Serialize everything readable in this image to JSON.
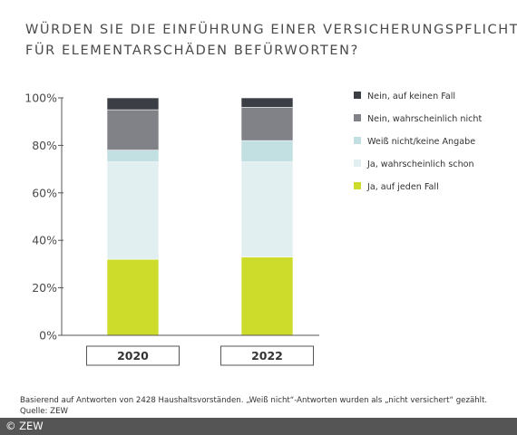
{
  "header": {
    "title_line1": "WÜRDEN SIE DIE EINFÜHRUNG EINER VERSICHERUNGSPFLICHT",
    "title_line2": "FÜR ELEMENTARSCHÄDEN BEFÜRWORTEN?"
  },
  "chart_data": {
    "type": "bar",
    "stacked": true,
    "categories": [
      "2020",
      "2022"
    ],
    "series": [
      {
        "name": "Ja, auf jeden Fall",
        "color": "#cddc2a",
        "values": [
          32,
          33
        ]
      },
      {
        "name": "Ja, wahrscheinlich schon",
        "color": "#e2eff1",
        "values": [
          41,
          40
        ]
      },
      {
        "name": "Weiß nicht/keine Angabe",
        "color": "#c2dfe2",
        "values": [
          5,
          9
        ]
      },
      {
        "name": "Nein, wahrscheinlich nicht",
        "color": "#808288",
        "values": [
          17,
          14
        ]
      },
      {
        "name": "Nein, auf keinen Fall",
        "color": "#3b3e44",
        "values": [
          5,
          4
        ]
      }
    ],
    "y_ticks": [
      "0%",
      "20%",
      "40%",
      "60%",
      "80%",
      "100%"
    ],
    "y_tick_values": [
      0,
      20,
      40,
      60,
      80,
      100
    ],
    "ylim": [
      0,
      100
    ],
    "xlabel": "",
    "ylabel": "",
    "legend_position": "right",
    "grid": false
  },
  "footnote": {
    "line1": "Basierend auf Antworten von 2428 Haushaltsvorständen. „Weiß nicht“-Antworten wurden als „nicht versichert“ gezählt.",
    "line2": "Quelle: ZEW"
  },
  "copyright": "© ZEW"
}
